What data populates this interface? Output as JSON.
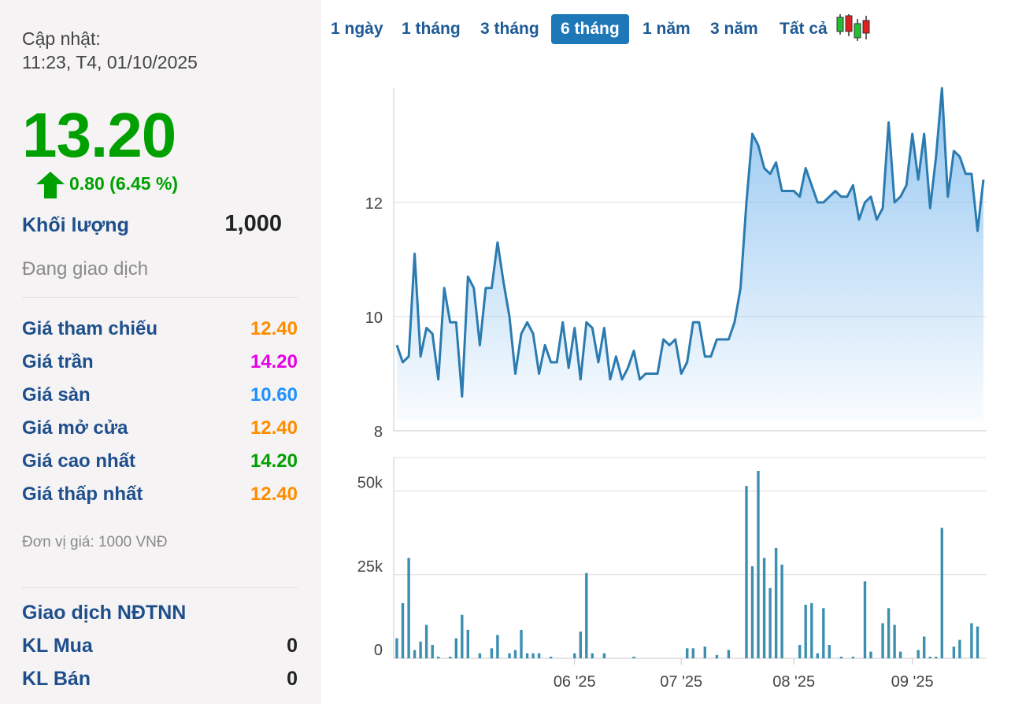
{
  "panel": {
    "update_label": "Cập nhật:",
    "update_time": "11:23, T4, 01/10/2025",
    "price": "13.20",
    "change": "0.80 (6.45 %)",
    "volume_label": "Khối lượng",
    "volume_value": "1,000",
    "status": "Đang giao dịch",
    "prices": [
      {
        "label": "Giá tham chiếu",
        "value": "12.40",
        "color": "#ff8c00"
      },
      {
        "label": "Giá trần",
        "value": "14.20",
        "color": "#e600e6"
      },
      {
        "label": "Giá sàn",
        "value": "10.60",
        "color": "#1e90ff"
      },
      {
        "label": "Giá mở cửa",
        "value": "12.40",
        "color": "#ff8c00"
      },
      {
        "label": "Giá cao nhất",
        "value": "14.20",
        "color": "#00a000"
      },
      {
        "label": "Giá thấp nhất",
        "value": "12.40",
        "color": "#ff8c00"
      }
    ],
    "unit": "Đơn vị giá: 1000 VNĐ",
    "foreign_title": "Giao dịch NĐTNN",
    "foreign": [
      {
        "label": "KL Mua",
        "value": "0"
      },
      {
        "label": "KL Bán",
        "value": "0"
      }
    ],
    "up_color": "#00a000"
  },
  "tabs": [
    "1 ngày",
    "1 tháng",
    "3 tháng",
    "6 tháng",
    "1 năm",
    "3 năm",
    "Tất cả"
  ],
  "active_tab": "6 tháng",
  "candle_icon": "candlestick-icon",
  "chart_data": [
    {
      "type": "area",
      "ylim": [
        8,
        14
      ],
      "yticks": [
        8,
        10,
        12
      ],
      "x_tick_labels": [
        "06 '25",
        "07 '25",
        "08 '25",
        "09 '25"
      ],
      "x_tick_index": [
        30,
        48,
        67,
        87
      ],
      "line_color": "#2b7bb0",
      "fill_top": "#8ec3f0",
      "grid": true,
      "values": [
        9.5,
        9.2,
        9.3,
        11.1,
        9.3,
        9.8,
        9.7,
        8.9,
        10.5,
        9.9,
        9.9,
        8.6,
        10.7,
        10.5,
        9.5,
        10.5,
        10.5,
        11.3,
        10.6,
        10.0,
        9.0,
        9.7,
        9.9,
        9.7,
        9.0,
        9.5,
        9.2,
        9.2,
        9.9,
        9.1,
        9.8,
        8.9,
        9.9,
        9.8,
        9.2,
        9.8,
        8.9,
        9.3,
        8.9,
        9.1,
        9.4,
        8.9,
        9.0,
        9.0,
        9.0,
        9.6,
        9.5,
        9.6,
        9.0,
        9.2,
        9.9,
        9.9,
        9.3,
        9.3,
        9.6,
        9.6,
        9.6,
        9.9,
        10.5,
        12.0,
        13.2,
        13.0,
        12.6,
        12.5,
        12.7,
        12.2,
        12.2,
        12.2,
        12.1,
        12.6,
        12.3,
        12.0,
        12.0,
        12.1,
        12.2,
        12.1,
        12.1,
        12.3,
        11.7,
        12.0,
        12.1,
        11.7,
        11.9,
        13.4,
        12.0,
        12.1,
        12.3,
        13.2,
        12.4,
        13.2,
        11.9,
        12.8,
        14.0,
        12.1,
        12.9,
        12.8,
        12.5,
        12.5,
        11.5,
        12.4
      ]
    },
    {
      "type": "bar",
      "ylim": [
        0,
        60000
      ],
      "yticks": [
        0,
        25000,
        50000
      ],
      "ytick_labels": [
        "0",
        "25k",
        "50k"
      ],
      "x_tick_labels": [
        "06 '25",
        "07 '25",
        "08 '25",
        "09 '25"
      ],
      "x_tick_index": [
        30,
        48,
        67,
        87
      ],
      "bar_color": "#3d8fb0",
      "values": [
        6000,
        16500,
        30000,
        2500,
        5000,
        10000,
        4000,
        500,
        0,
        500,
        6000,
        13000,
        8500,
        0,
        1500,
        0,
        3000,
        7000,
        0,
        1500,
        2500,
        8500,
        1500,
        1500,
        1500,
        0,
        500,
        0,
        0,
        0,
        1500,
        8000,
        25500,
        1500,
        0,
        1500,
        0,
        0,
        0,
        0,
        500,
        0,
        0,
        0,
        0,
        0,
        0,
        0,
        0,
        3000,
        3000,
        0,
        3500,
        0,
        1000,
        0,
        2500,
        0,
        0,
        51500,
        27500,
        56000,
        30000,
        21000,
        33000,
        28000,
        0,
        0,
        4000,
        16000,
        16500,
        1500,
        15000,
        4000,
        0,
        500,
        0,
        500,
        0,
        23000,
        2000,
        0,
        10500,
        15000,
        10000,
        2000,
        0,
        0,
        2500,
        6500,
        500,
        500,
        39000,
        0,
        3500,
        5500,
        0,
        10500,
        9500,
        0
      ]
    }
  ]
}
